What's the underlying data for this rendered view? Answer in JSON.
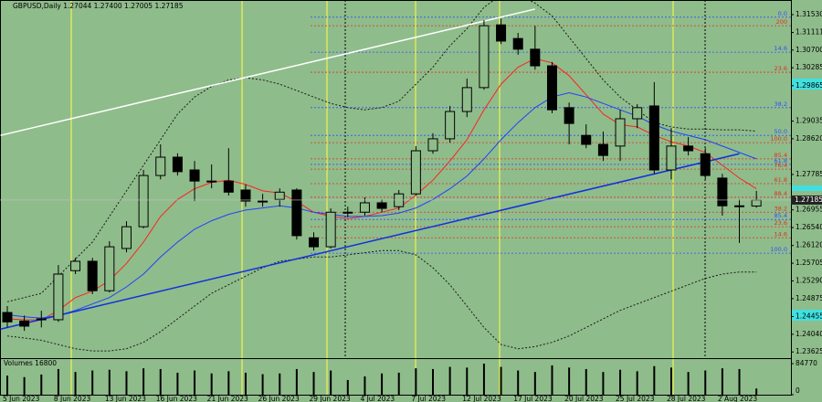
{
  "chart_data": {
    "type": "candlestick",
    "title": "GBPUSD,Daily 1.27044 1.27400 1.27005 1.27185",
    "categories": [
      "5 Jun 2023",
      null,
      null,
      "8 Jun 2023",
      null,
      null,
      "13 Jun 2023",
      null,
      null,
      "16 Jun 2023",
      null,
      null,
      "21 Jun 2023",
      null,
      null,
      "26 Jun 2023",
      null,
      null,
      "29 Jun 2023",
      null,
      null,
      "4 Jul 2023",
      null,
      null,
      "7 Jul 2023",
      null,
      null,
      "12 Jul 2023",
      null,
      null,
      "17 Jul 2023",
      null,
      null,
      "20 Jul 2023",
      null,
      null,
      "25 Jul 2023",
      null,
      null,
      "28 Jul 2023",
      null,
      null,
      "2 Aug 2023",
      null,
      null
    ],
    "open": [
      1.2455,
      1.2435,
      1.2438,
      1.2438,
      1.2553,
      1.2575,
      1.2506,
      1.2605,
      1.2656,
      1.2776,
      1.2819,
      1.2789,
      1.2763,
      1.2763,
      1.2742,
      1.2716,
      1.272,
      1.2742,
      1.263,
      1.2609,
      1.269,
      1.269,
      1.2712,
      1.2703,
      1.2733,
      1.2834,
      1.2862,
      1.2926,
      1.2982,
      1.3129,
      1.3097,
      1.3072,
      1.3033,
      1.2935,
      1.287,
      1.2849,
      1.2845,
      1.2909,
      1.2939,
      1.2789,
      1.2845,
      1.2827,
      1.277,
      1.2705,
      1.27044
    ],
    "high": [
      1.247,
      1.2448,
      1.2459,
      1.2566,
      1.2583,
      1.2583,
      1.2622,
      1.2669,
      1.2789,
      1.2849,
      1.2828,
      1.281,
      1.2802,
      1.284,
      1.2755,
      1.2733,
      1.2746,
      1.2746,
      1.2643,
      1.2699,
      1.2703,
      1.2725,
      1.272,
      1.2742,
      1.2845,
      1.2875,
      1.2939,
      1.3003,
      1.314,
      1.3144,
      1.311,
      1.3127,
      1.3042,
      1.2947,
      1.2896,
      1.2879,
      1.293,
      1.2943,
      1.2995,
      1.2887,
      1.2866,
      1.284,
      1.278,
      1.272,
      1.274
    ],
    "low": [
      1.242,
      1.2412,
      1.242,
      1.2433,
      1.2545,
      1.2498,
      1.2502,
      1.2596,
      1.2652,
      1.2767,
      1.2776,
      1.2716,
      1.2746,
      1.2729,
      1.2703,
      1.2703,
      1.2703,
      1.2626,
      1.26,
      1.2605,
      1.2678,
      1.2682,
      1.269,
      1.2695,
      1.2729,
      1.2827,
      1.2853,
      1.2913,
      1.2977,
      1.3084,
      1.3059,
      1.3024,
      1.2922,
      1.2849,
      1.284,
      1.281,
      1.281,
      1.2887,
      1.278,
      1.2767,
      1.2823,
      1.2767,
      1.2682,
      1.2618,
      1.27005
    ],
    "close": [
      1.2433,
      1.2423,
      1.244,
      1.2545,
      1.2575,
      1.2506,
      1.2609,
      1.2656,
      1.2776,
      1.2819,
      1.2785,
      1.2763,
      1.2763,
      1.2737,
      1.2716,
      1.2714,
      1.2737,
      1.2635,
      1.2609,
      1.269,
      1.2689,
      1.2712,
      1.2699,
      1.2733,
      1.2834,
      1.2862,
      1.2926,
      1.2982,
      1.3127,
      1.3091,
      1.3072,
      1.3033,
      1.293,
      1.2898,
      1.2849,
      1.2823,
      1.2909,
      1.2935,
      1.2789,
      1.2845,
      1.2834,
      1.2776,
      1.2705,
      1.2705,
      1.27185
    ],
    "bull_color": "#8fbc8b",
    "bear_color": "#000000",
    "series": [
      {
        "color": "#ff2020",
        "style": "solid",
        "values": [
          1.244,
          1.2438,
          1.2437,
          1.246,
          1.249,
          1.2505,
          1.253,
          1.257,
          1.262,
          1.268,
          1.272,
          1.2745,
          1.276,
          1.2765,
          1.2755,
          1.274,
          1.2735,
          1.2715,
          1.269,
          1.268,
          1.2675,
          1.268,
          1.269,
          1.27,
          1.273,
          1.2765,
          1.281,
          1.286,
          1.293,
          1.299,
          1.303,
          1.305,
          1.304,
          1.301,
          1.2965,
          1.292,
          1.2895,
          1.289,
          1.287,
          1.2855,
          1.2845,
          1.283,
          1.28,
          1.277,
          1.2745
        ]
      },
      {
        "color": "#2040ff",
        "style": "solid",
        "values": [
          1.245,
          1.2445,
          1.2442,
          1.2448,
          1.246,
          1.2475,
          1.249,
          1.2515,
          1.2545,
          1.2585,
          1.262,
          1.265,
          1.267,
          1.2685,
          1.2695,
          1.27,
          1.2705,
          1.27,
          1.269,
          1.2685,
          1.268,
          1.268,
          1.2682,
          1.2688,
          1.27,
          1.272,
          1.2745,
          1.2775,
          1.2815,
          1.286,
          1.29,
          1.2935,
          1.296,
          1.297,
          1.296,
          1.2945,
          1.293,
          1.2915,
          1.2895,
          1.288,
          1.287,
          1.286,
          1.2845,
          1.283,
          1.2815
        ]
      },
      {
        "color": "#1a1a1a",
        "style": "dotted",
        "values": [
          1.248,
          1.249,
          1.25,
          1.254,
          1.258,
          1.262,
          1.268,
          1.274,
          1.28,
          1.286,
          1.292,
          1.296,
          1.2985,
          1.3,
          1.3005,
          1.3,
          1.299,
          1.2975,
          1.296,
          1.2945,
          1.2935,
          1.293,
          1.2935,
          1.295,
          1.299,
          1.303,
          1.308,
          1.312,
          1.317,
          1.32,
          1.32,
          1.318,
          1.315,
          1.31,
          1.305,
          1.3,
          1.296,
          1.293,
          1.29,
          1.289,
          1.2885,
          1.2885,
          1.2883,
          1.2883,
          1.288
        ]
      },
      {
        "color": "#1a1a1a",
        "style": "dotted",
        "values": [
          1.24,
          1.2395,
          1.239,
          1.238,
          1.237,
          1.2365,
          1.2365,
          1.237,
          1.2385,
          1.241,
          1.244,
          1.247,
          1.25,
          1.252,
          1.254,
          1.256,
          1.2575,
          1.258,
          1.2585,
          1.2585,
          1.259,
          1.2595,
          1.26,
          1.26,
          1.259,
          1.256,
          1.252,
          1.247,
          1.242,
          1.238,
          1.237,
          1.2375,
          1.2385,
          1.24,
          1.242,
          1.244,
          1.246,
          1.2475,
          1.249,
          1.2505,
          1.252,
          1.2535,
          1.2545,
          1.255,
          1.255
        ]
      }
    ],
    "trendlines": [
      {
        "color": "#ffffff",
        "x": [
          -0.4,
          31.0
        ],
        "y": [
          1.287,
          1.3166
        ]
      },
      {
        "color": "#1030e0",
        "x": [
          -0.4,
          43.0
        ],
        "y": [
          1.2416,
          1.2827
        ]
      }
    ],
    "levels": [
      {
        "label": "0.0",
        "value": 1.3147,
        "color": "#3050ff"
      },
      {
        "label": "200",
        "value": 1.3127,
        "color": "#e03020"
      },
      {
        "label": "14.6",
        "value": 1.3065,
        "color": "#3050ff"
      },
      {
        "label": "23.6",
        "value": 1.3018,
        "color": "#e03020"
      },
      {
        "label": "38.2",
        "value": 1.2935,
        "color": "#3050ff"
      },
      {
        "label": "50.0",
        "value": 1.287,
        "color": "#3050ff"
      },
      {
        "label": "100.0",
        "value": 1.2853,
        "color": "#e03020"
      },
      {
        "label": "85.4",
        "value": 1.2815,
        "color": "#e03020"
      },
      {
        "label": "61.8",
        "value": 1.2802,
        "color": "#3050ff"
      },
      {
        "label": "76.4",
        "value": 1.2791,
        "color": "#e03020"
      },
      {
        "label": "61.8",
        "value": 1.2757,
        "color": "#e03020"
      },
      {
        "label": "88.4",
        "value": 1.2725,
        "color": "#e03020"
      },
      {
        "label": "38.2",
        "value": 1.269,
        "color": "#e03020"
      },
      {
        "label": "85.4",
        "value": 1.2673,
        "color": "#3050ff"
      },
      {
        "label": "23.6",
        "value": 1.2656,
        "color": "#e03020"
      },
      {
        "label": "14.6",
        "value": 1.263,
        "color": "#e03020"
      },
      {
        "label": "100.0",
        "value": 1.2594,
        "color": "#3050ff"
      }
    ],
    "current_price": {
      "value": 1.27185,
      "label": "1.27185"
    },
    "ylim": [
      1.2348,
      1.3183
    ],
    "yticks": [
      {
        "value": 1.3153,
        "label": "1.31530"
      },
      {
        "value": 1.31111,
        "label": "1.31111"
      },
      {
        "value": 1.307,
        "label": "1.30700"
      },
      {
        "value": 1.30285,
        "label": "1.30285"
      },
      {
        "value": 1.29865,
        "label": "1.29865"
      },
      {
        "value": 1.29035,
        "label": "1.29035"
      },
      {
        "value": 1.2862,
        "label": "1.28620"
      },
      {
        "value": 1.27785,
        "label": "1.27785"
      },
      {
        "value": 1.26955,
        "label": "1.26955"
      },
      {
        "value": 1.2654,
        "label": "1.26540"
      },
      {
        "value": 1.2612,
        "label": "1.26120"
      },
      {
        "value": 1.25705,
        "label": "1.25705"
      },
      {
        "value": 1.2529,
        "label": "1.25290"
      },
      {
        "value": 1.24875,
        "label": "1.24875"
      },
      {
        "value": 1.24455,
        "label": "1.24455"
      },
      {
        "value": 1.2404,
        "label": "1.24040"
      },
      {
        "value": 1.23625,
        "label": "1.23625"
      }
    ],
    "volume": {
      "label": "Volumes 16800",
      "values": [
        52000,
        48000,
        55000,
        70000,
        62000,
        66000,
        68000,
        64000,
        72000,
        70000,
        60000,
        66000,
        58000,
        64000,
        60000,
        56000,
        58000,
        70000,
        62000,
        66000,
        40000,
        50000,
        58000,
        60000,
        72000,
        70000,
        76000,
        74000,
        84770,
        76000,
        66000,
        62000,
        80000,
        74000,
        70000,
        62000,
        68000,
        64000,
        78000,
        74000,
        62000,
        66000,
        72000,
        70000,
        16800
      ],
      "ylim": [
        0,
        84770
      ],
      "yticks": [
        84770,
        0
      ]
    }
  }
}
